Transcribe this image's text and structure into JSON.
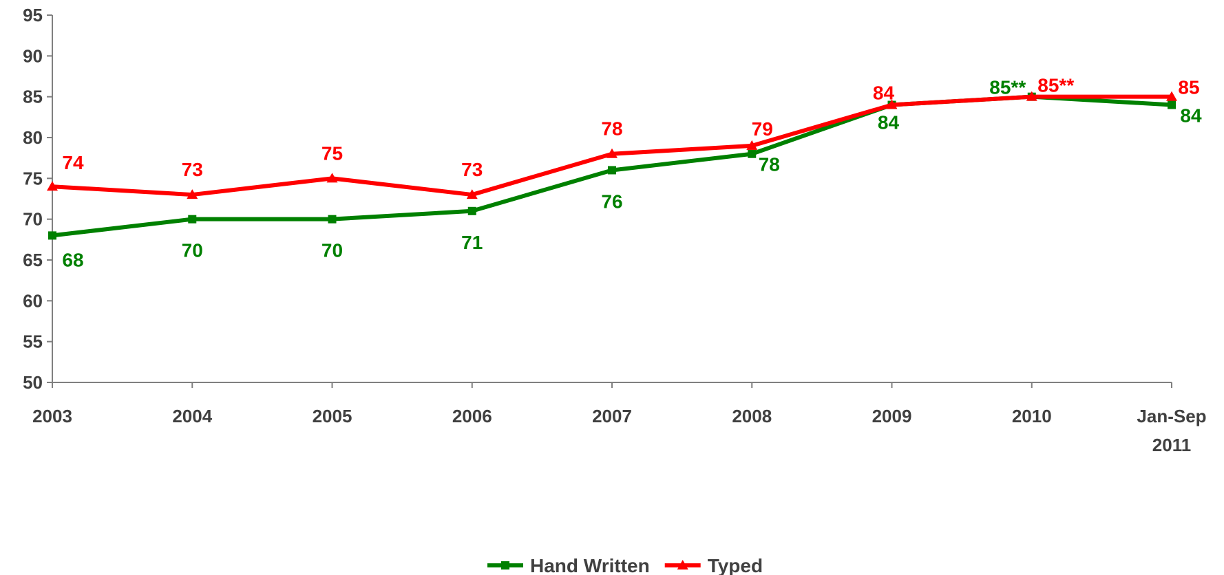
{
  "chart_data": {
    "type": "line",
    "categories": [
      "2003",
      "2004",
      "2005",
      "2006",
      "2007",
      "2008",
      "2009",
      "2010",
      "Jan-Sep 2011"
    ],
    "category_lines": [
      [
        "2003"
      ],
      [
        "2004"
      ],
      [
        "2005"
      ],
      [
        "2006"
      ],
      [
        "2007"
      ],
      [
        "2008"
      ],
      [
        "2009"
      ],
      [
        "2010"
      ],
      [
        "Jan-Sep",
        "2011"
      ]
    ],
    "ylim": [
      50,
      95
    ],
    "yticks": [
      50,
      55,
      60,
      65,
      70,
      75,
      80,
      85,
      90,
      95
    ],
    "grid": false,
    "legend_position": "bottom",
    "series": [
      {
        "name": "Hand Written",
        "color": "#008000",
        "marker": "square",
        "values": [
          68,
          70,
          70,
          71,
          76,
          78,
          84,
          85,
          84
        ],
        "labels": [
          "68",
          "70",
          "70",
          "71",
          "76",
          "78",
          "84",
          "85**",
          "84"
        ]
      },
      {
        "name": "Typed",
        "color": "#ff0000",
        "marker": "triangle",
        "values": [
          74,
          73,
          75,
          73,
          78,
          79,
          84,
          85,
          85
        ],
        "labels": [
          "74",
          "73",
          "75",
          "73",
          "78",
          "79",
          "84",
          "85**",
          "85"
        ]
      }
    ]
  }
}
